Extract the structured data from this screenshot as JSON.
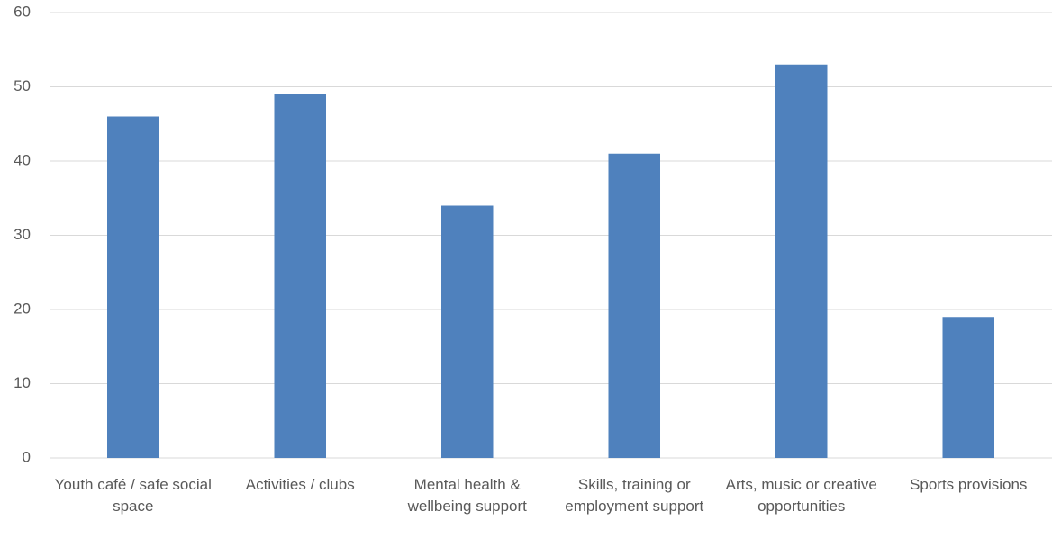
{
  "chart_data": {
    "type": "bar",
    "categories": [
      "Youth café / safe social space",
      "Activities / clubs",
      "Mental health & wellbeing support",
      "Skills, training or employment support",
      "Arts, music or creative opportunities",
      "Sports provisions"
    ],
    "values": [
      46,
      49,
      34,
      41,
      53,
      19
    ],
    "color": "#4f81bd",
    "ylim": [
      0,
      60
    ],
    "yticks": [
      0,
      10,
      20,
      30,
      40,
      50,
      60
    ],
    "grid": true
  }
}
